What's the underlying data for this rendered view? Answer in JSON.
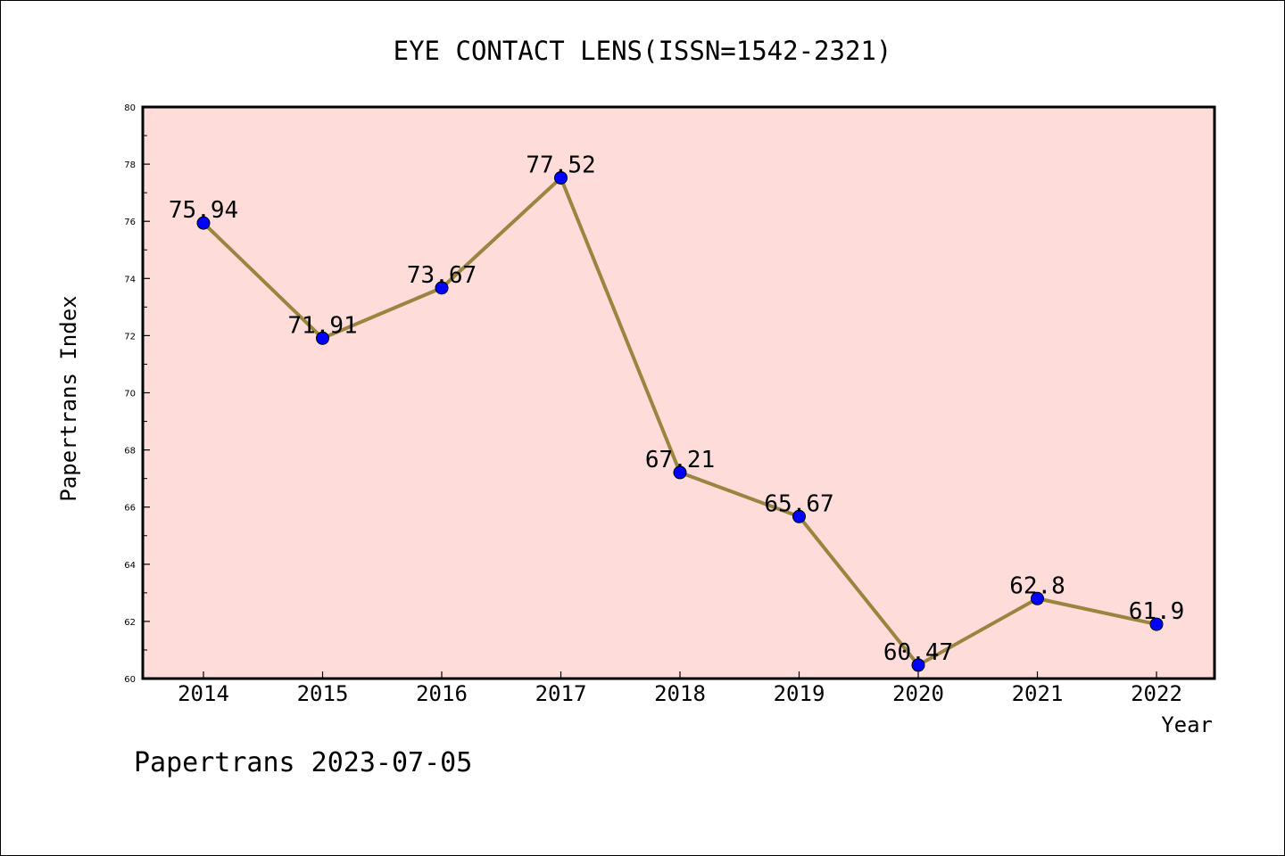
{
  "chart_data": {
    "type": "line",
    "title": "EYE CONTACT LENS(ISSN=1542-2321)",
    "xlabel": "Year",
    "ylabel": "Papertrans Index",
    "footer": "Papertrans 2023-07-05",
    "categories": [
      "2014",
      "2015",
      "2016",
      "2017",
      "2018",
      "2019",
      "2020",
      "2021",
      "2022"
    ],
    "series": [
      {
        "values": [
          75.94,
          71.91,
          73.67,
          77.52,
          67.21,
          65.67,
          60.47,
          62.8,
          61.9
        ],
        "labels": [
          "75.94",
          "71.91",
          "73.67",
          "77.52",
          "67.21",
          "65.67",
          "60.47",
          "62.8",
          "61.9"
        ]
      }
    ],
    "ylim": [
      60,
      80
    ],
    "yticks": [
      "60",
      "62",
      "64",
      "66",
      "68",
      "70",
      "72",
      "74",
      "76",
      "78",
      "80"
    ],
    "grid": false,
    "colors": {
      "plot_background": "#fddcd9",
      "line": "#9a8540",
      "marker": "#0000ff"
    }
  }
}
